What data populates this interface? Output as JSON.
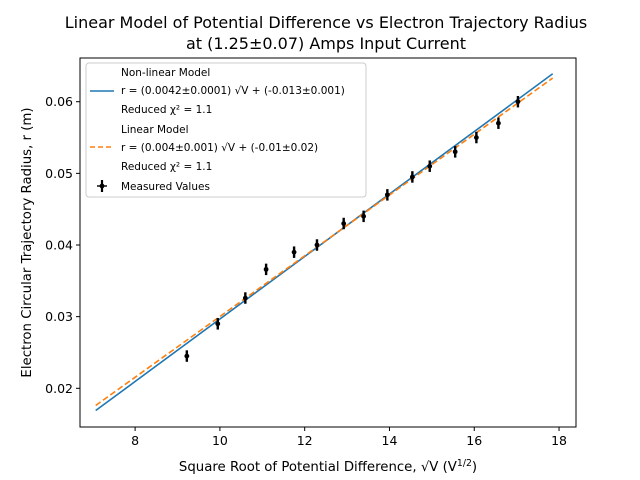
{
  "chart_data": {
    "type": "scatter",
    "title": [
      "Linear Model of Potential Difference vs Electron Trajectory Radius",
      "at (1.25±0.07) Amps Input Current"
    ],
    "xlabel": "Square Root of Potential Difference, √V (V^1/2)",
    "ylabel": "Electron Circular Trajectory Radius, r (m)",
    "xlim": [
      6.7,
      18.4
    ],
    "ylim": [
      0.0146,
      0.0661
    ],
    "xticks": [
      8,
      10,
      12,
      14,
      16,
      18
    ],
    "yticks": [
      0.02,
      0.03,
      0.04,
      0.05,
      0.06
    ],
    "grid": false,
    "legend_position": "top-left",
    "series": [
      {
        "name": "Non-linear Model",
        "kind": "line",
        "color": "#1f77b4",
        "dash": "solid",
        "label_lines": [
          "Non-linear Model",
          "r = (0.0042±0.0001) √V + (-0.013±0.001)",
          "Reduced χ² = 1.1"
        ],
        "x": [
          7.07,
          17.85
        ],
        "y": [
          0.0169,
          0.0639
        ]
      },
      {
        "name": "Linear Model",
        "kind": "line",
        "color": "#ff7f0e",
        "dash": "dashed",
        "label_lines": [
          "Linear Model",
          "r = (0.004±0.001) √V + (-0.01±0.02)",
          "Reduced χ² = 1.1"
        ],
        "x": [
          7.07,
          17.85
        ],
        "y": [
          0.0176,
          0.0633
        ]
      },
      {
        "name": "Measured Values",
        "kind": "errorbar",
        "color": "#000000",
        "x": [
          9.22,
          9.95,
          10.6,
          11.09,
          11.75,
          12.29,
          12.92,
          13.39,
          13.95,
          14.54,
          14.95,
          15.55,
          16.05,
          16.57,
          17.03
        ],
        "y": [
          0.0245,
          0.029,
          0.0326,
          0.0366,
          0.039,
          0.04,
          0.043,
          0.044,
          0.047,
          0.0495,
          0.051,
          0.053,
          0.055,
          0.057,
          0.06
        ],
        "xerr": [
          0.04,
          0.04,
          0.04,
          0.04,
          0.04,
          0.04,
          0.04,
          0.04,
          0.04,
          0.04,
          0.04,
          0.04,
          0.04,
          0.04,
          0.04
        ],
        "yerr": [
          0.0008,
          0.0008,
          0.0008,
          0.0008,
          0.0008,
          0.0008,
          0.0008,
          0.0008,
          0.0008,
          0.0008,
          0.0008,
          0.0008,
          0.0008,
          0.0008,
          0.0008
        ]
      }
    ]
  }
}
